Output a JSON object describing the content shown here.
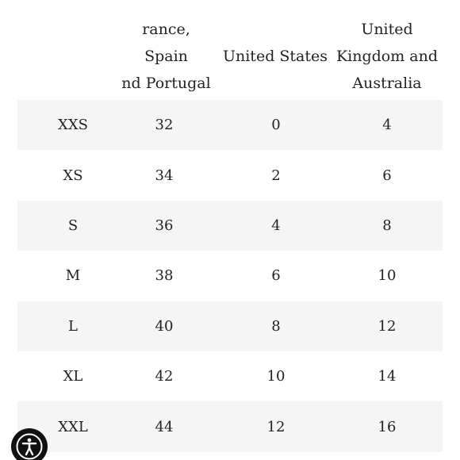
{
  "table": {
    "headers": {
      "size": "",
      "france_spain_portugal": "rance, Spain\nnd Portugal",
      "united_states": "United States",
      "uk_australia": "United\nKingdom and\nAustralia"
    },
    "rows": [
      {
        "size": "XXS",
        "fr": "32",
        "us": "0",
        "uk": "4"
      },
      {
        "size": "XS",
        "fr": "34",
        "us": "2",
        "uk": "6"
      },
      {
        "size": "S",
        "fr": "36",
        "us": "4",
        "uk": "8"
      },
      {
        "size": "M",
        "fr": "38",
        "us": "6",
        "uk": "10"
      },
      {
        "size": "L",
        "fr": "40",
        "us": "8",
        "uk": "12"
      },
      {
        "size": "XL",
        "fr": "42",
        "us": "10",
        "uk": "14"
      },
      {
        "size": "XXL",
        "fr": "44",
        "us": "12",
        "uk": "16"
      }
    ]
  },
  "accessibility_button": {
    "icon": "accessibility-icon",
    "color": "#111111"
  },
  "colors": {
    "shaded_row": "#f5f5f5",
    "text": "#222222"
  }
}
